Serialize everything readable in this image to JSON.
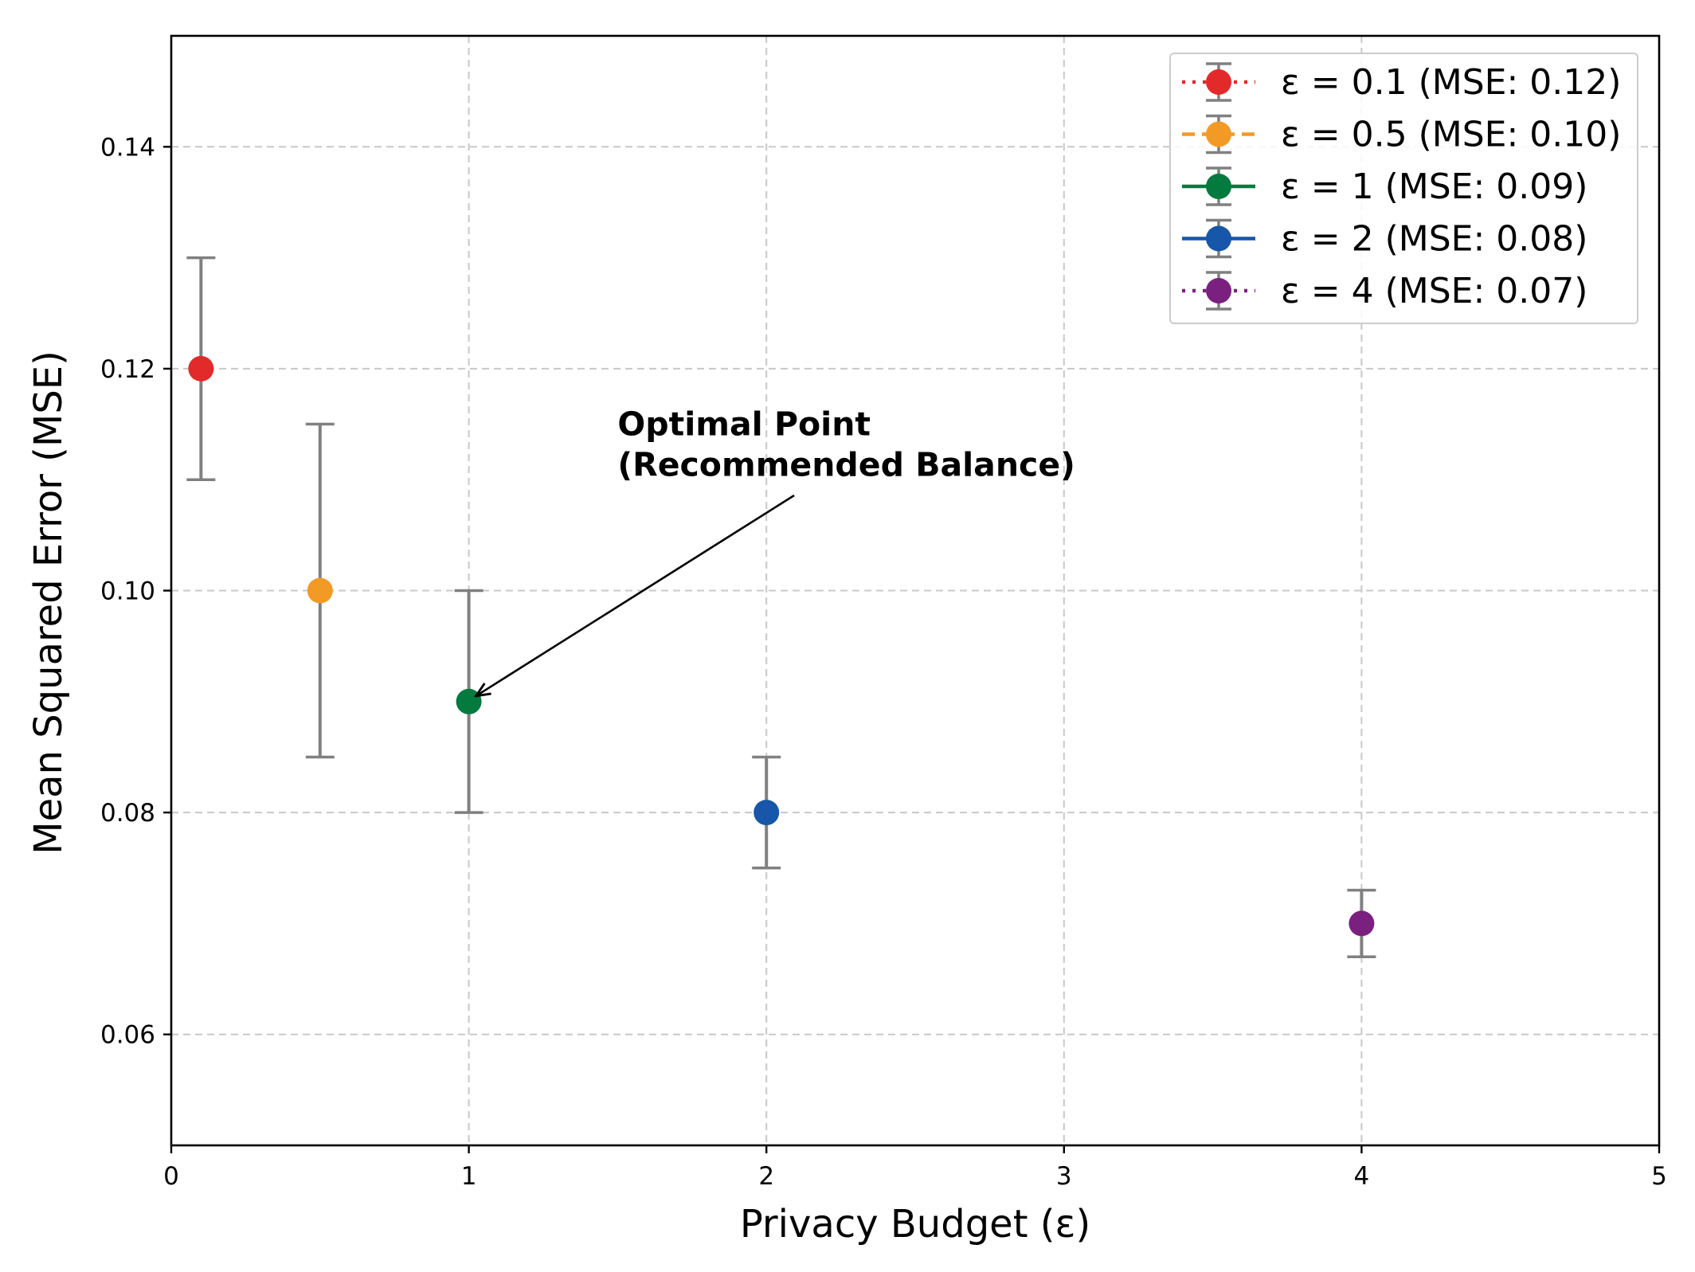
{
  "chart_data": {
    "type": "scatter",
    "xlabel": "Privacy Budget (ε)",
    "ylabel": "Mean Squared Error (MSE)",
    "xlim": [
      0,
      5
    ],
    "ylim": [
      0.05,
      0.15
    ],
    "x_ticks": [
      0,
      1,
      2,
      3,
      4,
      5
    ],
    "x_tick_labels": [
      "0",
      "1",
      "2",
      "3",
      "4",
      "5"
    ],
    "y_ticks": [
      0.06,
      0.08,
      0.1,
      0.12,
      0.14
    ],
    "y_tick_labels": [
      "0.06",
      "0.08",
      "0.10",
      "0.12",
      "0.14"
    ],
    "grid": true,
    "legend_position": "top-right",
    "series": [
      {
        "name": "ε = 0.1 (MSE: 0.12)",
        "x": 0.1,
        "y": 0.12,
        "err_low": 0.11,
        "err_high": 0.13,
        "color": "#e32a2a",
        "line_style": "dotted"
      },
      {
        "name": "ε = 0.5 (MSE: 0.10)",
        "x": 0.5,
        "y": 0.1,
        "err_low": 0.085,
        "err_high": 0.115,
        "color": "#f39a26",
        "line_style": "dashed"
      },
      {
        "name": "ε = 1 (MSE: 0.09)",
        "x": 1,
        "y": 0.09,
        "err_low": 0.08,
        "err_high": 0.1,
        "color": "#037a3e",
        "line_style": "solid"
      },
      {
        "name": "ε = 2 (MSE: 0.08)",
        "x": 2,
        "y": 0.08,
        "err_low": 0.075,
        "err_high": 0.085,
        "color": "#1756a8",
        "line_style": "solid"
      },
      {
        "name": "ε = 4 (MSE: 0.07)",
        "x": 4,
        "y": 0.07,
        "err_low": 0.067,
        "err_high": 0.073,
        "color": "#7a2180",
        "line_style": "dotted"
      }
    ],
    "errorbar_color": "#808080",
    "annotation": {
      "lines": [
        "Optimal Point",
        "(Recommended Balance)"
      ],
      "text_x": 1.5,
      "text_y": 0.114,
      "target_x": 1,
      "target_y": 0.09
    }
  }
}
